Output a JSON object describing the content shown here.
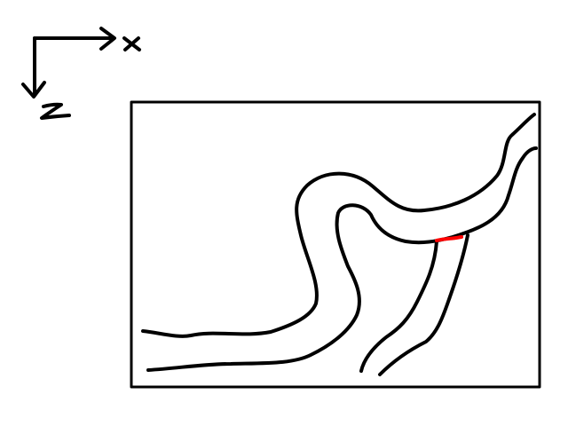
{
  "colors": {
    "background": "#ffffff",
    "ink": "#000000",
    "highlight": "#ff0000"
  },
  "axes": {
    "x_label": "x",
    "z_label": "Z"
  },
  "icons": {
    "x_arrow": "arrow-right-icon",
    "z_arrow": "arrow-down-icon"
  }
}
